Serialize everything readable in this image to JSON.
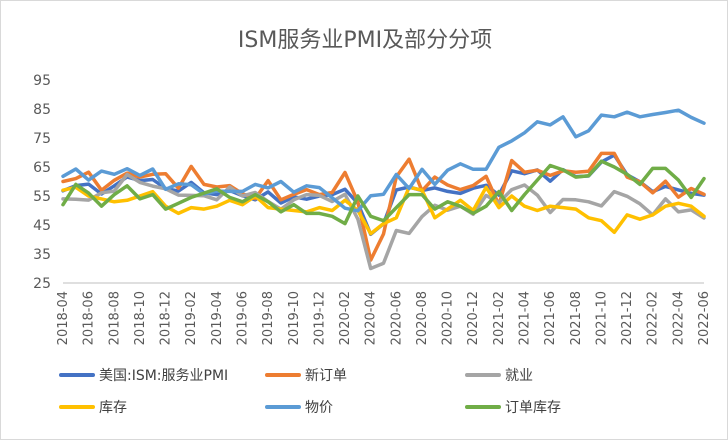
{
  "chart_data": {
    "type": "line",
    "title": "ISM服务业PMI及部分分项",
    "xlabel": "",
    "ylabel": "",
    "ylim": [
      25,
      95
    ],
    "yticks": [
      25,
      35,
      45,
      55,
      65,
      75,
      85,
      95
    ],
    "grid": false,
    "legend_position": "bottom",
    "x_tick_labels": [
      "2018-04",
      "2018-06",
      "2018-08",
      "2018-10",
      "2018-12",
      "2019-02",
      "2019-04",
      "2019-06",
      "2019-08",
      "2019-10",
      "2019-12",
      "2020-02",
      "2020-04",
      "2020-06",
      "2020-08",
      "2020-10",
      "2020-12",
      "2021-02",
      "2021-04",
      "2021-06",
      "2021-08",
      "2021-10",
      "2021-12",
      "2022-02",
      "2022-04",
      "2022-06"
    ],
    "x": [
      "2018-04",
      "2018-05",
      "2018-06",
      "2018-07",
      "2018-08",
      "2018-09",
      "2018-10",
      "2018-11",
      "2018-12",
      "2019-01",
      "2019-02",
      "2019-03",
      "2019-04",
      "2019-05",
      "2019-06",
      "2019-07",
      "2019-08",
      "2019-09",
      "2019-10",
      "2019-11",
      "2019-12",
      "2020-01",
      "2020-02",
      "2020-03",
      "2020-04",
      "2020-05",
      "2020-06",
      "2020-07",
      "2020-08",
      "2020-09",
      "2020-10",
      "2020-11",
      "2020-12",
      "2021-01",
      "2021-02",
      "2021-03",
      "2021-04",
      "2021-05",
      "2021-06",
      "2021-07",
      "2021-08",
      "2021-09",
      "2021-10",
      "2021-11",
      "2021-12",
      "2022-01",
      "2022-02",
      "2022-03",
      "2022-04",
      "2022-05",
      "2022-06"
    ],
    "series": [
      {
        "name": "美国:ISM:服务业PMI",
        "color": "#4472C4",
        "values": [
          56.8,
          58.6,
          59.1,
          55.7,
          58.5,
          61.6,
          60.3,
          60.7,
          57.6,
          56.7,
          59.7,
          56.1,
          55.5,
          56.9,
          55.1,
          53.7,
          56.4,
          52.6,
          54.7,
          53.9,
          55.0,
          55.5,
          57.3,
          52.5,
          41.8,
          45.4,
          57.1,
          58.1,
          56.9,
          57.8,
          56.6,
          55.9,
          57.7,
          58.7,
          55.3,
          63.7,
          62.7,
          64.0,
          60.1,
          64.1,
          61.7,
          61.9,
          66.7,
          69.1,
          62.3,
          59.9,
          56.5,
          58.3,
          57.1,
          55.9,
          55.3
        ]
      },
      {
        "name": "新订单",
        "color": "#ED7D31",
        "values": [
          60.0,
          61.0,
          63.2,
          57.0,
          60.4,
          62.9,
          61.5,
          62.5,
          62.7,
          57.7,
          65.2,
          59.0,
          58.1,
          58.6,
          55.8,
          54.1,
          60.3,
          53.7,
          55.6,
          57.2,
          55.5,
          56.2,
          63.1,
          52.9,
          32.9,
          41.9,
          61.6,
          67.7,
          56.8,
          61.5,
          58.8,
          57.2,
          58.6,
          61.8,
          51.9,
          67.2,
          63.2,
          63.9,
          62.1,
          63.7,
          63.2,
          63.5,
          69.7,
          69.7,
          61.5,
          59.9,
          56.1,
          60.1,
          54.6,
          57.6,
          55.6
        ]
      },
      {
        "name": "就业",
        "color": "#A5A5A5",
        "values": [
          54.0,
          53.9,
          53.6,
          56.1,
          56.7,
          62.4,
          59.7,
          58.4,
          57.5,
          55.3,
          55.2,
          55.1,
          53.7,
          58.1,
          55.0,
          56.2,
          53.1,
          50.4,
          53.7,
          55.5,
          55.2,
          53.1,
          55.6,
          47.0,
          30.0,
          31.8,
          43.1,
          42.1,
          47.9,
          51.8,
          50.1,
          51.5,
          48.7,
          55.2,
          52.7,
          57.2,
          58.8,
          55.3,
          49.3,
          53.8,
          53.7,
          53.0,
          51.6,
          56.5,
          54.9,
          52.3,
          48.5,
          54.0,
          49.5,
          50.2,
          47.4
        ]
      },
      {
        "name": "库存",
        "color": "#FFC000",
        "values": [
          57.0,
          58.0,
          55.0,
          54.0,
          53.0,
          53.5,
          55.0,
          56.5,
          51.5,
          49.0,
          51.0,
          50.5,
          51.5,
          53.5,
          52.0,
          55.0,
          51.0,
          50.5,
          50.0,
          49.5,
          51.0,
          50.0,
          53.5,
          50.0,
          42.0,
          45.5,
          47.5,
          58.0,
          57.0,
          47.5,
          50.5,
          53.5,
          50.0,
          58.0,
          51.0,
          55.0,
          51.5,
          50.0,
          51.5,
          51.0,
          50.5,
          47.5,
          46.5,
          42.5,
          48.5,
          47.0,
          48.5,
          51.5,
          52.5,
          51.5,
          48.0
        ]
      },
      {
        "name": "物价",
        "color": "#5B9BD5",
        "values": [
          61.8,
          64.3,
          60.5,
          63.6,
          62.5,
          64.4,
          62.1,
          64.3,
          57.3,
          59.2,
          58.9,
          55.7,
          56.7,
          56.6,
          56.6,
          59.0,
          57.8,
          60.0,
          56.3,
          58.5,
          57.9,
          54.4,
          50.8,
          49.9,
          55.1,
          55.6,
          62.4,
          57.6,
          64.2,
          59.0,
          63.9,
          66.1,
          64.2,
          64.2,
          71.8,
          74.0,
          76.8,
          80.6,
          79.5,
          82.3,
          75.4,
          77.5,
          82.9,
          82.3,
          83.9,
          82.3,
          83.1,
          83.8,
          84.6,
          82.1,
          80.1
        ]
      },
      {
        "name": "订单库存",
        "color": "#70AD47",
        "values": [
          52.0,
          59.0,
          56.0,
          51.5,
          55.5,
          58.5,
          54.0,
          55.5,
          50.5,
          52.5,
          54.5,
          56.0,
          57.5,
          54.5,
          53.0,
          55.5,
          53.0,
          49.5,
          52.0,
          49.0,
          49.0,
          48.0,
          45.5,
          55.0,
          48.0,
          46.5,
          51.0,
          55.5,
          55.5,
          50.5,
          53.0,
          51.5,
          49.0,
          51.5,
          56.5,
          50.0,
          55.5,
          60.5,
          65.5,
          64.0,
          61.5,
          62.0,
          67.0,
          65.0,
          62.5,
          59.0,
          64.5,
          64.5,
          60.5,
          54.5,
          61.0
        ]
      }
    ]
  }
}
